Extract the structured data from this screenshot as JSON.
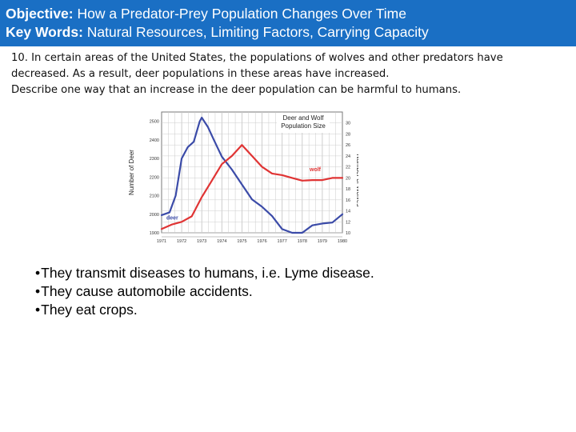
{
  "header": {
    "objective_label": "Objective:",
    "objective_text": " How a Predator-Prey Population Changes Over Time",
    "keywords_label": "Key Words:",
    "keywords_text": " Natural Resources, Limiting Factors, Carrying Capacity"
  },
  "question": {
    "line1": "10. In certain areas of the United States, the populations of wolves and other predators have",
    "line2": "decreased. As a result, deer populations in these areas have increased.",
    "line3": "Describe one way that an increase in the deer population can be harmful to humans."
  },
  "answers": [
    "They transmit diseases to humans, i.e. Lyme disease.",
    "They cause automobile accidents.",
    "They eat crops."
  ],
  "chart_data": {
    "type": "line",
    "title": "Deer and Wolf Population Size",
    "x": [
      1971,
      1972,
      1973,
      1974,
      1975,
      1976,
      1977,
      1978,
      1979,
      1980
    ],
    "xlim": [
      1971,
      1980
    ],
    "xtick_labels": [
      "1971",
      "1972",
      "1973",
      "1974",
      "1975",
      "1976",
      "1977",
      "1978",
      "1979",
      "1980"
    ],
    "ylabel": "Number of Deer",
    "ylim": [
      1900,
      2550
    ],
    "ytick_labels": [
      "1900",
      "2000",
      "2100",
      "2200",
      "2300",
      "2400",
      "2500"
    ],
    "y2label": "Number of Wolves",
    "y2lim": [
      10,
      32
    ],
    "y2tick_labels": [
      "10",
      "12",
      "14",
      "16",
      "18",
      "20",
      "22",
      "24",
      "26",
      "28",
      "30"
    ],
    "grid": true,
    "series": [
      {
        "name": "deer",
        "axis": "left",
        "color": "#3b4ba8",
        "x": [
          1971,
          1971.4,
          1971.7,
          1972,
          1972.3,
          1972.6,
          1972.9,
          1973.0,
          1973.3,
          1973.6,
          1974,
          1974.5,
          1975,
          1975.5,
          1976,
          1976.5,
          1977,
          1977.5,
          1978,
          1978.5,
          1979,
          1979.5,
          1980
        ],
        "y": [
          1995,
          2010,
          2100,
          2300,
          2360,
          2390,
          2500,
          2520,
          2470,
          2400,
          2310,
          2240,
          2160,
          2080,
          2040,
          1990,
          1920,
          1900,
          1900,
          1940,
          1950,
          1955,
          2000
        ]
      },
      {
        "name": "wolf",
        "axis": "right",
        "color": "#e03434",
        "x": [
          1971,
          1971.5,
          1972,
          1972.5,
          1973,
          1973.5,
          1974,
          1974.5,
          1975,
          1975.5,
          1976,
          1976.5,
          1977,
          1977.5,
          1978,
          1978.5,
          1979,
          1979.5,
          1980
        ],
        "y": [
          10.7,
          11.5,
          12.0,
          13.0,
          16.5,
          19.5,
          22.5,
          24.0,
          26.0,
          24.0,
          22.0,
          20.8,
          20.5,
          20.0,
          19.5,
          19.6,
          19.6,
          20.0,
          20.0
        ]
      }
    ]
  }
}
